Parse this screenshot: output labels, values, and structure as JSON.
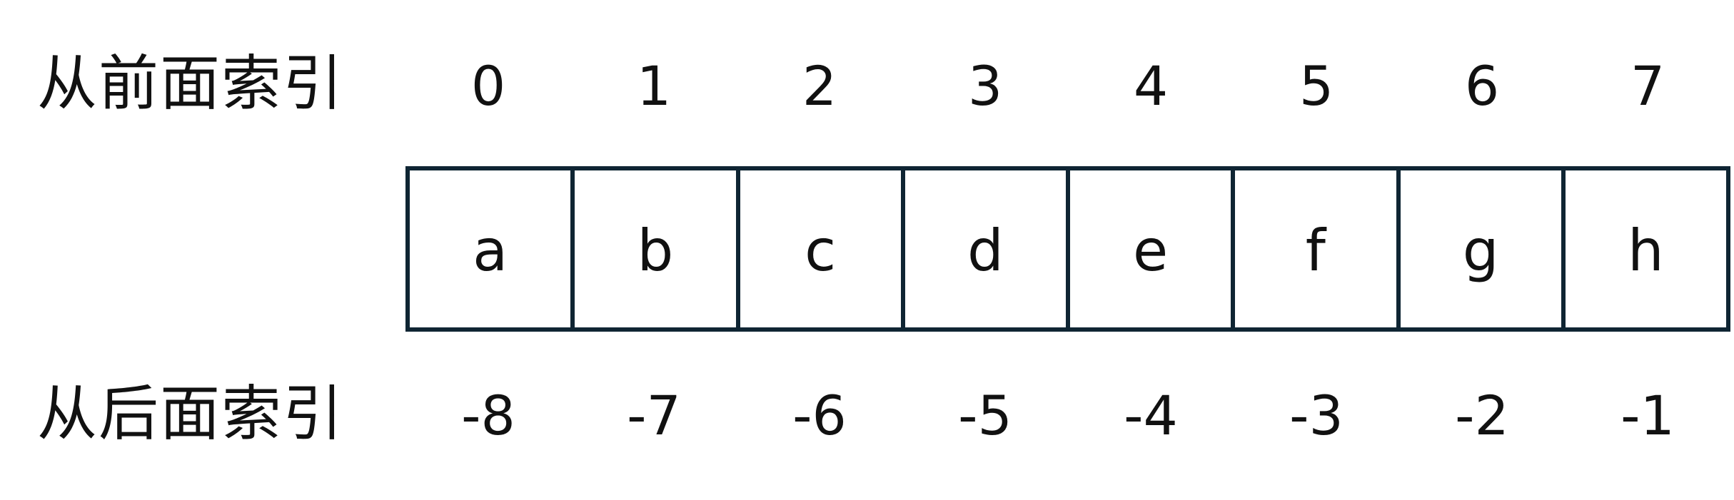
{
  "labels": {
    "front": "从前面索引",
    "back": "从后面索引"
  },
  "front_indices": [
    "0",
    "1",
    "2",
    "3",
    "4",
    "5",
    "6",
    "7"
  ],
  "elements": [
    "a",
    "b",
    "c",
    "d",
    "e",
    "f",
    "g",
    "h"
  ],
  "back_indices": [
    "-8",
    "-7",
    "-6",
    "-5",
    "-4",
    "-3",
    "-2",
    "-1"
  ],
  "colors": {
    "border": "#0f2533",
    "text": "#111111",
    "background": "#ffffff"
  }
}
